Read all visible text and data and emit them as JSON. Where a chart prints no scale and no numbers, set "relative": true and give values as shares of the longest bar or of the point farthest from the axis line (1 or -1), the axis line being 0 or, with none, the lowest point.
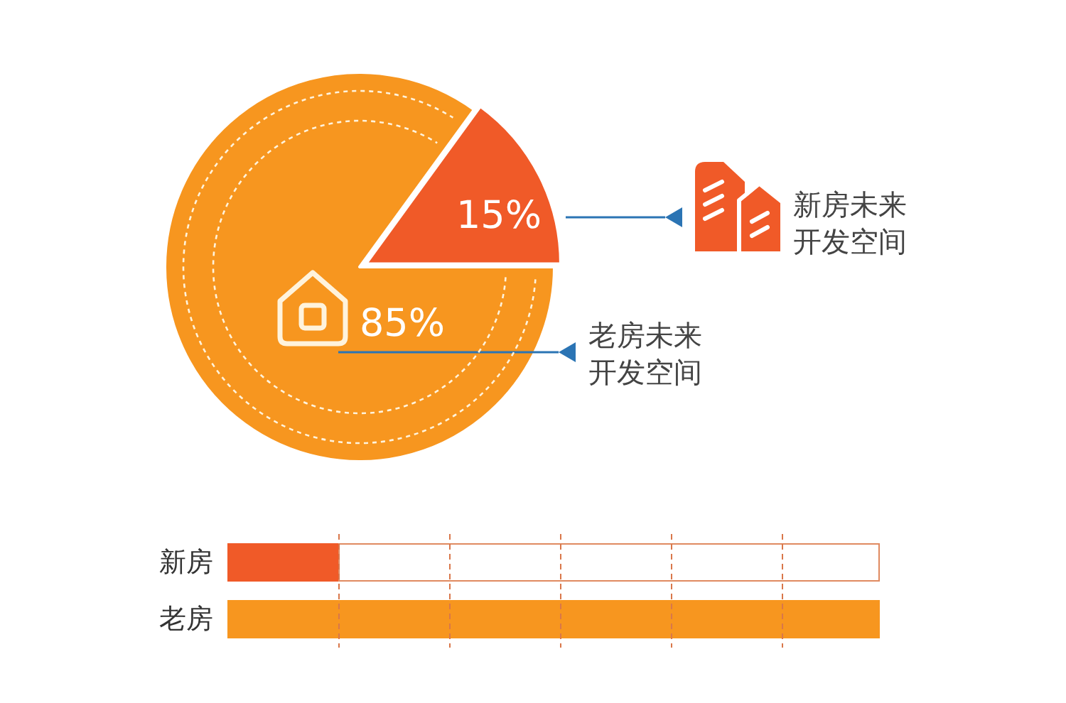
{
  "chart_data": [
    {
      "type": "pie",
      "categories": [
        "新房未来开发空间",
        "老房未来开发空间"
      ],
      "values": [
        15,
        85
      ],
      "colors": [
        "#f05a28",
        "#f7961f"
      ],
      "value_labels": [
        "15%",
        "85%"
      ]
    },
    {
      "type": "bar",
      "orientation": "horizontal",
      "relative": true,
      "stacked": true,
      "categories": [
        "新房",
        "老房"
      ],
      "series": [
        {
          "colors": [
            "#f05a28",
            "#f7961f"
          ],
          "values": [
            0.17,
            1
          ]
        },
        {
          "color": "#ffffff",
          "values": [
            0.83,
            null
          ]
        }
      ],
      "ref_lines": [
        {
          "axis": "x",
          "value": 0.17,
          "color": "#d9774a",
          "line_style": "dashed"
        },
        {
          "axis": "x",
          "value": 0.34,
          "color": "#d9774a",
          "line_style": "dashed"
        },
        {
          "axis": "x",
          "value": 0.51,
          "color": "#d9774a",
          "line_style": "dashed"
        },
        {
          "axis": "x",
          "value": 0.68,
          "color": "#d9774a",
          "line_style": "dashed"
        },
        {
          "axis": "x",
          "value": 0.85,
          "color": "#d9774a",
          "line_style": "dashed"
        }
      ]
    }
  ]
}
